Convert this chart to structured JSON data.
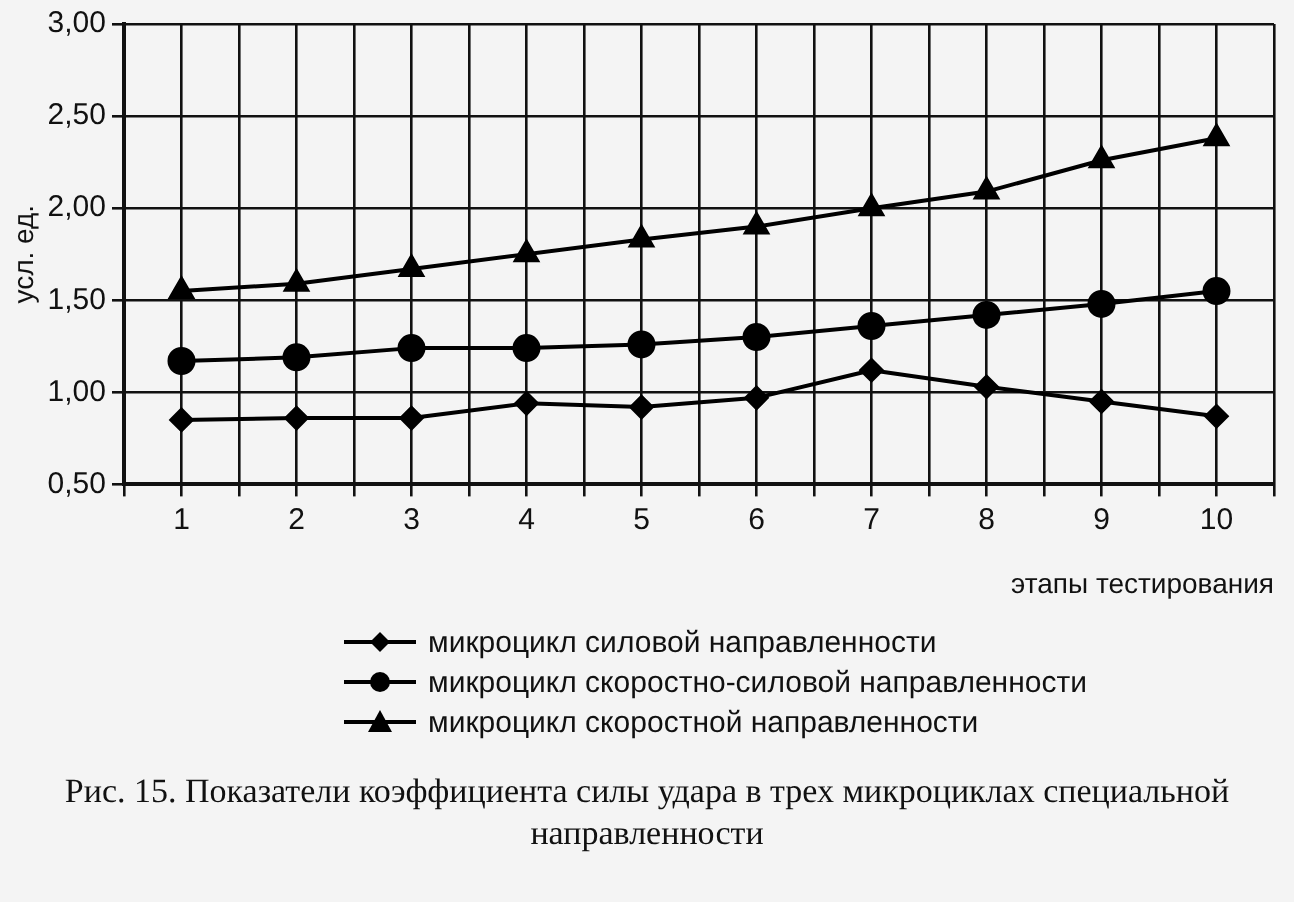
{
  "chart_data": {
    "type": "line",
    "title": "Рис. 15. Показатели коэффициента силы удара в трех микроциклах специальной направленности",
    "xlabel": "этапы тестирования",
    "ylabel": "усл. ед.",
    "x": [
      1,
      2,
      3,
      4,
      5,
      6,
      7,
      8,
      9,
      10
    ],
    "xlim": [
      0.5,
      10.5
    ],
    "xticks": [
      {
        "value": 0.5,
        "label": null
      },
      1,
      {
        "value": 1.5,
        "label": null
      },
      2,
      {
        "value": 2.5,
        "label": null
      },
      3,
      {
        "value": 3.5,
        "label": null
      },
      4,
      {
        "value": 4.5,
        "label": null
      },
      5,
      {
        "value": 5.5,
        "label": null
      },
      6,
      {
        "value": 6.5,
        "label": null
      },
      7,
      {
        "value": 7.5,
        "label": null
      },
      8,
      {
        "value": 8.5,
        "label": null
      },
      9,
      {
        "value": 9.5,
        "label": null
      },
      10,
      {
        "value": 10.5,
        "label": null
      }
    ],
    "ylim": [
      0.5,
      3
    ],
    "yticks": [
      {
        "value": 0.5,
        "label": "0,50"
      },
      {
        "value": 1,
        "label": "1,00"
      },
      {
        "value": 1.5,
        "label": "1,50"
      },
      {
        "value": 2,
        "label": "2,00"
      },
      {
        "value": 2.5,
        "label": "2,50"
      },
      {
        "value": 3,
        "label": "3,00"
      }
    ],
    "grid": true,
    "legend": "bottom",
    "line_style": "solid",
    "series": [
      {
        "name": "микроцикл силовой направленности",
        "color": "#000000",
        "marker": "diamond",
        "values": [
          0.85,
          0.86,
          0.86,
          0.94,
          0.92,
          0.97,
          1.12,
          1.03,
          0.95,
          0.87
        ]
      },
      {
        "name": "микроцикл скоростно-силовой направленности",
        "color": "#000000",
        "marker": "circle",
        "values": [
          1.17,
          1.19,
          1.24,
          1.24,
          1.26,
          1.3,
          1.36,
          1.42,
          1.48,
          1.55
        ]
      },
      {
        "name": "микроцикл скоростной направленности",
        "color": "#000000",
        "marker": "triangle",
        "values": [
          1.55,
          1.59,
          1.67,
          1.75,
          1.83,
          1.9,
          2.0,
          2.09,
          2.26,
          2.38
        ]
      }
    ]
  }
}
